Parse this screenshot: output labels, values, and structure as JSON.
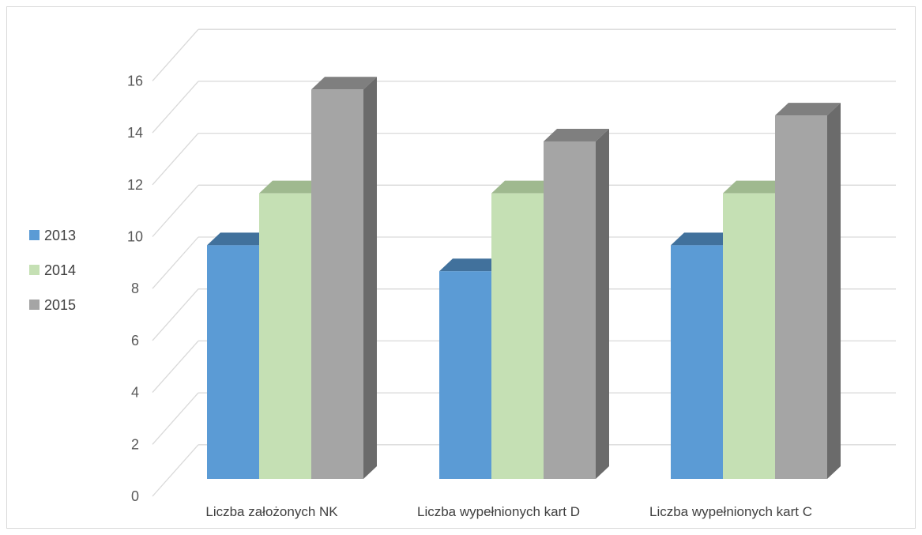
{
  "chart_data": {
    "type": "bar",
    "variant": "3d-clustered-column",
    "categories": [
      "Liczba założonych NK",
      "Liczba wypełnionych kart D",
      "Liczba wypełnionych kart C"
    ],
    "series": [
      {
        "name": "2013",
        "values": [
          9,
          8,
          9
        ],
        "color": "#5b9bd5",
        "top_color": "#41719c",
        "side_color": "#3e6e9a"
      },
      {
        "name": "2014",
        "values": [
          11,
          11,
          11
        ],
        "color": "#c5e0b4",
        "top_color": "#9fb98f",
        "side_color": "#8fa882"
      },
      {
        "name": "2015",
        "values": [
          15,
          13,
          14
        ],
        "color": "#a5a5a5",
        "top_color": "#7f7f7f",
        "side_color": "#6b6b6b"
      }
    ],
    "yticks": [
      0,
      2,
      4,
      6,
      8,
      10,
      12,
      14,
      16
    ],
    "ylim": [
      0,
      16
    ],
    "grid": true,
    "legend_position": "left",
    "title": "",
    "xlabel": "",
    "ylabel": ""
  }
}
